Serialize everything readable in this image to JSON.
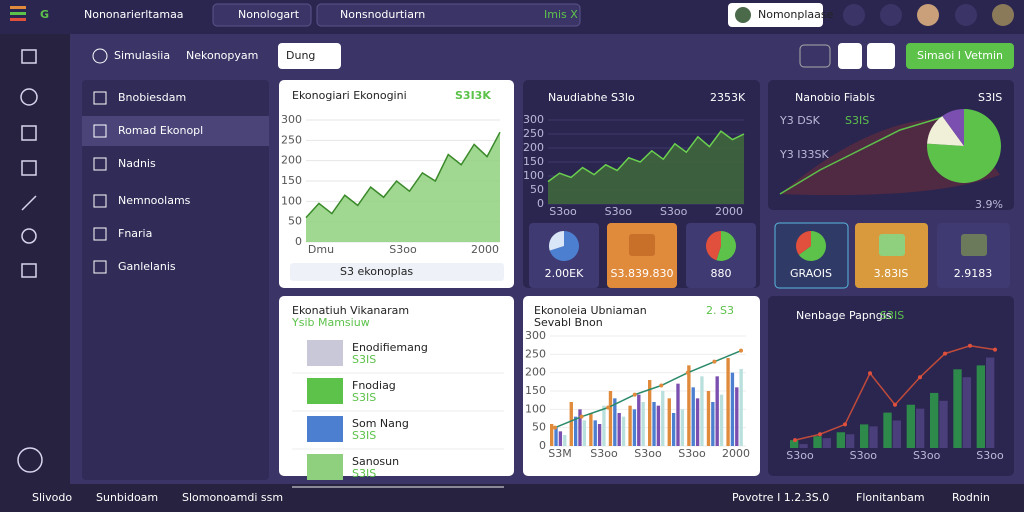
{
  "top": {
    "title": "Nononarierltamaa",
    "search1": "Nonologart",
    "search2": "Nonsnodurtiarn",
    "search2_tag": "Imis X",
    "button": "Nomonplaase"
  },
  "header": {
    "title": "Simulasiia",
    "subtitle": "Nekonopyam",
    "button": "Dung",
    "action": "Simaoi I Vetmin"
  },
  "nav": [
    "Bnobiesdam",
    "Romad Ekonopl",
    "Nadnis",
    "Nemnoolams",
    "Fnaria",
    "Ganlelanis"
  ],
  "cardA": {
    "title": "Ekonogiari Ekonogini",
    "badge": "S3I3K",
    "footer": "S3 ekonoplas",
    "x_labels": [
      "Dmu",
      "S3oo",
      "2000"
    ],
    "values": [
      60,
      95,
      70,
      115,
      90,
      135,
      110,
      150,
      125,
      170,
      150,
      215,
      190,
      240,
      210,
      270
    ],
    "ylim": [
      0,
      300
    ],
    "yticks": [
      0,
      50,
      100,
      150,
      200,
      250,
      300
    ]
  },
  "cardB": {
    "title": "Naudiabhe S3lo",
    "badge": "2353K",
    "x_labels": [
      "S3oo",
      "S3oo",
      "S3oo",
      "2000"
    ],
    "values": [
      80,
      110,
      95,
      130,
      105,
      140,
      120,
      165,
      150,
      190,
      160,
      215,
      185,
      240,
      205,
      260,
      230,
      250
    ],
    "ylim": [
      0,
      300
    ],
    "yticks": [
      0,
      50,
      100,
      150,
      200,
      250,
      300
    ],
    "tiles": [
      {
        "label": "2.00EK",
        "pie": [
          70,
          30
        ]
      },
      {
        "label": "S3.839.830"
      },
      {
        "label": "880",
        "pie": [
          55,
          45
        ]
      }
    ]
  },
  "cardC": {
    "title": "Nanobio Fiabls",
    "badge": "S3IS",
    "notes": [
      "Y3 DSK",
      "S3IS",
      "Y3 I33SK",
      "3.9%"
    ],
    "pie": [
      76,
      14,
      10
    ],
    "tiles": [
      {
        "label": "GRAOIS",
        "pie": [
          65,
          35
        ]
      },
      {
        "label": "3.83IS"
      },
      {
        "label": "2.9183"
      }
    ]
  },
  "cardD": {
    "title": "Ekonatiuh Vikanaram",
    "subtitle": "Ysib Mamsiuw",
    "items": [
      {
        "name": "Enodifiemang",
        "rating": "S3IS"
      },
      {
        "name": "Fnodiag",
        "rating": "S3IS"
      },
      {
        "name": "Som Nang",
        "rating": "S3IS"
      },
      {
        "name": "Sanosun",
        "rating": "S3IS"
      }
    ]
  },
  "cardE": {
    "title": "Ekonoleia Ubniaman",
    "badge": "2. S3",
    "subtitle": "Sevabl Bnon",
    "x_labels": [
      "S3M",
      "S3oo",
      "S3oo",
      "S3oo",
      "2000"
    ],
    "ylim": [
      0,
      300
    ],
    "yticks": [
      0,
      50,
      100,
      150,
      200,
      250,
      300
    ],
    "series": [
      {
        "color": "#e08a3c",
        "values": [
          60,
          120,
          90,
          150,
          110,
          180,
          130,
          220,
          150,
          240
        ]
      },
      {
        "color": "#4d7fd1",
        "values": [
          50,
          80,
          70,
          130,
          100,
          120,
          90,
          160,
          120,
          200
        ]
      },
      {
        "color": "#7a4fb0",
        "values": [
          40,
          100,
          60,
          90,
          140,
          110,
          170,
          130,
          190,
          160
        ]
      },
      {
        "color": "#b9e0dc",
        "values": [
          30,
          70,
          110,
          80,
          120,
          150,
          100,
          190,
          140,
          210
        ]
      }
    ],
    "line": [
      50,
      80,
      105,
      140,
      165,
      200,
      230,
      260
    ]
  },
  "cardF": {
    "title": "Nenbage Papngis",
    "badge": "S3IS",
    "x_labels": [
      "S3oo",
      "S3oo",
      "S3oo",
      "S3oo"
    ],
    "ylim": [
      0,
      300
    ],
    "series": [
      {
        "color": "#2e8a4a",
        "values": [
          20,
          30,
          40,
          60,
          90,
          110,
          140,
          200,
          210
        ]
      },
      {
        "color": "#4a3f7a",
        "values": [
          10,
          25,
          35,
          55,
          70,
          100,
          120,
          180,
          230
        ]
      }
    ],
    "line": [
      20,
      35,
      60,
      190,
      110,
      180,
      240,
      260,
      250
    ]
  },
  "bottom": [
    "Slivodo",
    "Sunbidoam",
    "Slomonoamdi ssm",
    "Povotre I 1.2.3S.0",
    "Flonitanbam",
    "Rodnin"
  ]
}
